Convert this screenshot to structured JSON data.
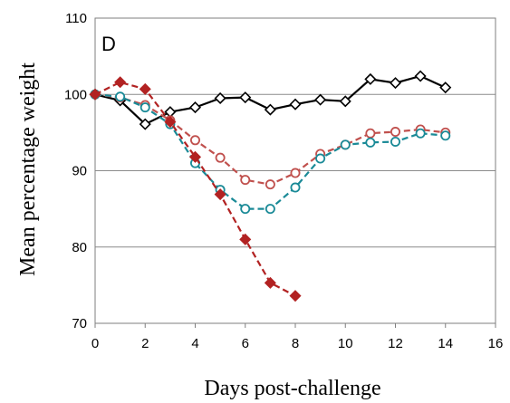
{
  "chart_data": {
    "type": "line",
    "panel_label": "D",
    "xlabel": "Days post-challenge",
    "ylabel": "Mean percentage weight",
    "xlim": [
      0,
      16
    ],
    "ylim": [
      70,
      110
    ],
    "xticks": [
      0,
      2,
      4,
      6,
      8,
      10,
      12,
      14,
      16
    ],
    "yticks": [
      70,
      80,
      90,
      100,
      110
    ],
    "grid": "horizontal",
    "series": [
      {
        "color": "#000000",
        "line_style": "solid",
        "marker": "open-diamond",
        "x": [
          0,
          1,
          2,
          3,
          4,
          5,
          6,
          7,
          8,
          9,
          10,
          11,
          12,
          13,
          14
        ],
        "y": [
          100,
          99.2,
          96.1,
          97.7,
          98.3,
          99.5,
          99.6,
          98.0,
          98.7,
          99.3,
          99.1,
          102.0,
          101.5,
          102.4,
          100.9
        ]
      },
      {
        "color": "#c0504d",
        "line_style": "dashed",
        "marker": "open-circle",
        "x": [
          0,
          1,
          2,
          3,
          4,
          5,
          6,
          7,
          8,
          9,
          10,
          11,
          12,
          13,
          14
        ],
        "y": [
          100,
          99.6,
          98.6,
          96.6,
          94.0,
          91.7,
          88.8,
          88.2,
          89.7,
          92.2,
          93.4,
          94.9,
          95.1,
          95.4,
          95.0
        ]
      },
      {
        "color": "#1a8a97",
        "line_style": "dashed",
        "marker": "open-circle",
        "x": [
          0,
          1,
          2,
          3,
          4,
          5,
          6,
          7,
          8,
          9,
          10,
          11,
          12,
          13,
          14
        ],
        "y": [
          100,
          99.7,
          98.3,
          96.1,
          91.0,
          87.5,
          85.0,
          85.0,
          87.8,
          91.6,
          93.4,
          93.7,
          93.8,
          94.9,
          94.6
        ]
      },
      {
        "color": "#b22222",
        "line_style": "dashed",
        "marker": "filled-diamond",
        "x": [
          0,
          1,
          2,
          3,
          4,
          5,
          6,
          7,
          8
        ],
        "y": [
          100,
          101.6,
          100.7,
          96.4,
          91.8,
          86.9,
          81.0,
          75.3,
          73.6
        ]
      }
    ]
  }
}
